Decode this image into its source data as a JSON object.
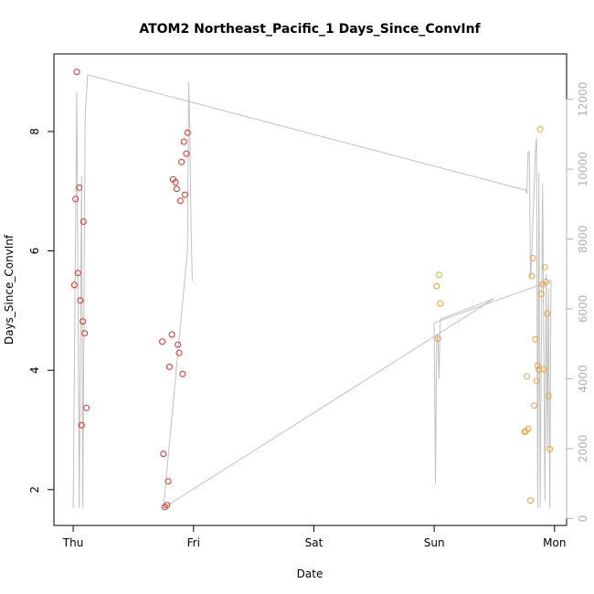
{
  "chart_data": {
    "type": "scatter",
    "title": "ATOM2 Northeast_Pacific_1 Days_Since_ConvInf",
    "xlabel": "Date",
    "ylabel": "Days_Since_ConvInf",
    "x_tick_labels": [
      "Thu",
      "Fri",
      "Sat",
      "Sun",
      "Mon"
    ],
    "xlim": [
      -0.16,
      4.1
    ],
    "ylim": [
      1.4,
      9.3
    ],
    "y_ticks": [
      2,
      4,
      6,
      8
    ],
    "y2_ticks": [
      0,
      2000,
      4000,
      6000,
      8000,
      10000,
      12000
    ],
    "y2lim": [
      -200,
      13300
    ],
    "grid": false,
    "series": [
      {
        "color": "#e8281e",
        "points": [
          {
            "x": 0.01,
            "y": 5.43
          },
          {
            "x": 0.02,
            "y": 6.87
          },
          {
            "x": 0.03,
            "y": 9.0
          },
          {
            "x": 0.04,
            "y": 5.63
          },
          {
            "x": 0.05,
            "y": 7.06
          },
          {
            "x": 0.06,
            "y": 5.17
          },
          {
            "x": 0.07,
            "y": 3.08
          },
          {
            "x": 0.08,
            "y": 4.82
          },
          {
            "x": 0.085,
            "y": 6.49
          },
          {
            "x": 0.095,
            "y": 4.62
          },
          {
            "x": 0.11,
            "y": 3.37
          },
          {
            "x": 0.74,
            "y": 4.48
          },
          {
            "x": 0.75,
            "y": 2.6
          },
          {
            "x": 0.76,
            "y": 1.71
          },
          {
            "x": 0.78,
            "y": 1.74
          },
          {
            "x": 0.79,
            "y": 2.14
          },
          {
            "x": 0.8,
            "y": 4.06
          },
          {
            "x": 0.82,
            "y": 4.6
          },
          {
            "x": 0.83,
            "y": 7.2
          },
          {
            "x": 0.85,
            "y": 7.15
          },
          {
            "x": 0.86,
            "y": 7.04
          },
          {
            "x": 0.87,
            "y": 4.43
          },
          {
            "x": 0.88,
            "y": 4.29
          },
          {
            "x": 0.89,
            "y": 6.84
          },
          {
            "x": 0.9,
            "y": 7.49
          },
          {
            "x": 0.91,
            "y": 3.94
          },
          {
            "x": 0.92,
            "y": 7.83
          },
          {
            "x": 0.93,
            "y": 6.94
          },
          {
            "x": 0.94,
            "y": 7.63
          },
          {
            "x": 0.95,
            "y": 7.98
          }
        ]
      },
      {
        "color": "#f3a030",
        "points": [
          {
            "x": 3.02,
            "y": 5.41
          },
          {
            "x": 3.03,
            "y": 4.53
          },
          {
            "x": 3.04,
            "y": 5.6
          },
          {
            "x": 3.05,
            "y": 5.12
          },
          {
            "x": 3.75,
            "y": 2.97
          },
          {
            "x": 3.76,
            "y": 2.98
          },
          {
            "x": 3.77,
            "y": 3.9
          },
          {
            "x": 3.78,
            "y": 3.02
          },
          {
            "x": 3.8,
            "y": 1.82
          },
          {
            "x": 3.81,
            "y": 5.58
          },
          {
            "x": 3.82,
            "y": 5.88
          },
          {
            "x": 3.83,
            "y": 3.41
          },
          {
            "x": 3.84,
            "y": 4.52
          },
          {
            "x": 3.85,
            "y": 3.82
          },
          {
            "x": 3.86,
            "y": 4.08
          },
          {
            "x": 3.87,
            "y": 4.01
          },
          {
            "x": 3.88,
            "y": 8.04
          },
          {
            "x": 3.89,
            "y": 5.28
          },
          {
            "x": 3.9,
            "y": 5.44
          },
          {
            "x": 3.91,
            "y": 4.02
          },
          {
            "x": 3.92,
            "y": 5.73
          },
          {
            "x": 3.93,
            "y": 5.48
          },
          {
            "x": 3.94,
            "y": 4.95
          },
          {
            "x": 3.95,
            "y": 3.57
          },
          {
            "x": 3.96,
            "y": 2.68
          }
        ]
      }
    ],
    "secondary_line": {
      "color": "#c0c0c0",
      "points": [
        [
          0.0,
          300
        ],
        [
          0.03,
          12200
        ],
        [
          0.05,
          300
        ],
        [
          0.07,
          9800
        ],
        [
          0.08,
          300
        ],
        [
          0.1,
          11500
        ],
        [
          0.12,
          12700
        ],
        [
          3.76,
          9400
        ],
        [
          3.77,
          9300
        ],
        [
          3.78,
          10500
        ],
        [
          3.79,
          10500
        ],
        [
          3.8,
          6900
        ],
        [
          3.81,
          7500
        ],
        [
          3.83,
          9400
        ],
        [
          3.84,
          10500
        ],
        [
          3.85,
          10900
        ],
        [
          3.86,
          300
        ],
        [
          3.87,
          9900
        ],
        [
          3.88,
          300
        ],
        [
          3.9,
          9600
        ],
        [
          3.92,
          500
        ],
        [
          3.93,
          7000
        ],
        [
          3.94,
          2000
        ],
        [
          3.95,
          6600
        ],
        [
          3.96,
          300
        ],
        [
          3.97,
          6800
        ],
        [
          3.0,
          5600
        ],
        [
          3.01,
          1000
        ],
        [
          3.02,
          5000
        ],
        [
          3.03,
          5300
        ],
        [
          3.04,
          4000
        ],
        [
          3.05,
          5700
        ],
        [
          3.5,
          6300
        ],
        [
          0.75,
          300
        ],
        [
          0.95,
          7700
        ],
        [
          0.96,
          12500
        ],
        [
          0.97,
          11000
        ],
        [
          0.98,
          8400
        ],
        [
          0.99,
          6800
        ]
      ]
    }
  }
}
